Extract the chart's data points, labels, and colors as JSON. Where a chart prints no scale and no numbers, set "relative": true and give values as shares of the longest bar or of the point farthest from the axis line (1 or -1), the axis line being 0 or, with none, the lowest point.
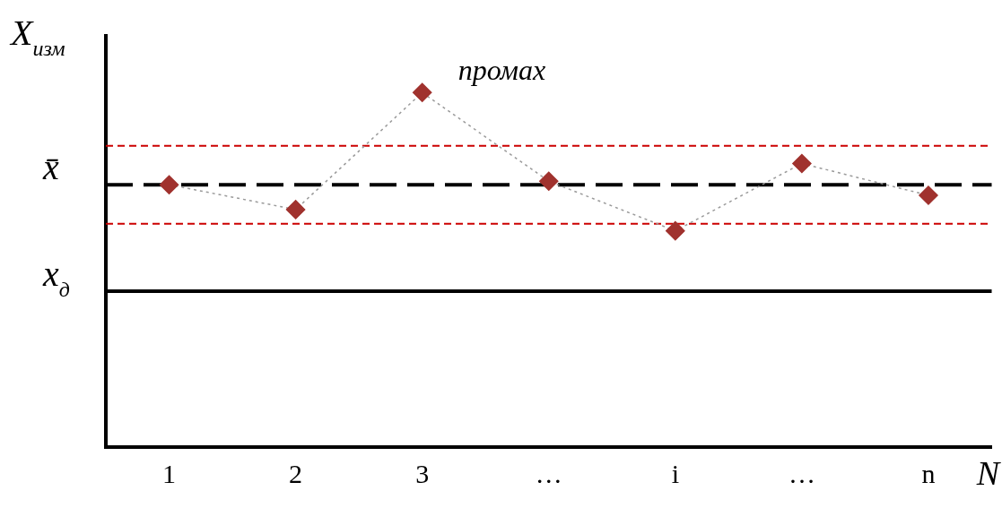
{
  "chart_data": {
    "type": "line",
    "relative": true,
    "xlabel": "N",
    "ylabel": "X$_{изм}$",
    "categories": [
      "1",
      "2",
      "3",
      "…",
      "i",
      "…",
      "n"
    ],
    "series": [
      {
        "color": "#a0322e",
        "values": [
          0.74,
          0.67,
          1,
          0.75,
          0.61,
          0.8,
          0.71
        ]
      }
    ],
    "marker": "diamond",
    "line_style": "dotted",
    "legend": false,
    "grid": false,
    "ref_lines": [
      {
        "axis": "y",
        "value": 0.85,
        "color": "#cc0000",
        "line_style": "dashed"
      },
      {
        "axis": "y",
        "value": 0.74,
        "label": "x̄",
        "color": "#000000",
        "line_style": "dashed"
      },
      {
        "axis": "y",
        "value": 0.63,
        "color": "#cc0000",
        "line_style": "dashed"
      },
      {
        "axis": "y",
        "value": 0.44,
        "label": "x$_{д}$",
        "color": "#000000",
        "line_style": "solid"
      }
    ],
    "annotations": [
      {
        "text": "промах",
        "x": "3",
        "y": 1
      }
    ]
  }
}
